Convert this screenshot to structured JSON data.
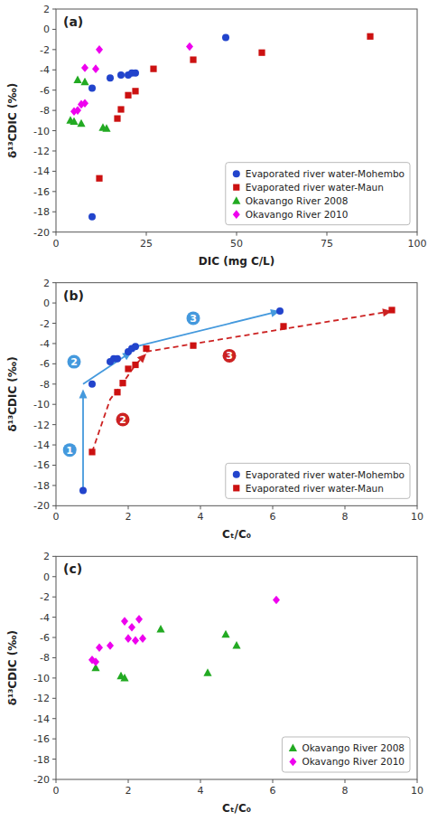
{
  "chart_data": [
    {
      "type": "scatter",
      "title": "(a)",
      "xlabel": "DIC (mg C/L)",
      "ylabel": "δ¹³CDIC (‰)",
      "xlim": [
        0,
        100
      ],
      "ylim": [
        -20,
        2
      ],
      "xticks": [
        0,
        25,
        50,
        75,
        100
      ],
      "yticks": [
        2,
        0,
        -2,
        -4,
        -6,
        -8,
        -10,
        -12,
        -14,
        -16,
        -18,
        -20
      ],
      "grid": false,
      "legend": "lower right",
      "series": [
        {
          "name": "Evaporated river water-Mohembo",
          "color": "#2244CC",
          "marker": "circle",
          "x": [
            10,
            10,
            15,
            18,
            20,
            21,
            22,
            47
          ],
          "values": [
            -18.5,
            -5.8,
            -4.8,
            -4.5,
            -4.5,
            -4.3,
            -4.3,
            -0.8
          ]
        },
        {
          "name": "Evaporated river water-Maun",
          "color": "#CC1111",
          "marker": "square",
          "x": [
            12,
            17,
            18,
            20,
            22,
            27,
            38,
            57,
            87
          ],
          "values": [
            -14.7,
            -8.8,
            -7.9,
            -6.5,
            -6.1,
            -3.9,
            -3.0,
            -2.3,
            -0.7
          ]
        },
        {
          "name": "Okavango River 2008",
          "color": "#22AA22",
          "marker": "triangle",
          "x": [
            4,
            5,
            6,
            7,
            8,
            13,
            14
          ],
          "values": [
            -9.0,
            -9.1,
            -5.0,
            -9.3,
            -5.2,
            -9.7,
            -9.8
          ]
        },
        {
          "name": "Okavango River 2010",
          "color": "#EE00EE",
          "marker": "diamond",
          "x": [
            5,
            6,
            7,
            8,
            8,
            11,
            12,
            37
          ],
          "values": [
            -8.1,
            -8.0,
            -7.4,
            -7.3,
            -3.8,
            -3.9,
            -2.0,
            -1.7
          ]
        }
      ]
    },
    {
      "type": "scatter",
      "title": "(b)",
      "xlabel": "Cₜ/C₀",
      "ylabel": "δ¹³CDIC (‰)",
      "xlim": [
        0,
        10
      ],
      "ylim": [
        -20,
        2
      ],
      "xticks": [
        0,
        2,
        4,
        6,
        8,
        10
      ],
      "yticks": [
        2,
        0,
        -2,
        -4,
        -6,
        -8,
        -10,
        -12,
        -14,
        -16,
        -18,
        -20
      ],
      "grid": false,
      "legend": "lower right",
      "series": [
        {
          "name": "Evaporated river water-Mohembo",
          "color": "#2244CC",
          "marker": "circle",
          "x": [
            0.75,
            1.0,
            1.5,
            1.6,
            1.7,
            2.0,
            2.1,
            2.2,
            6.2
          ],
          "values": [
            -18.5,
            -8.0,
            -5.8,
            -5.5,
            -5.5,
            -4.8,
            -4.5,
            -4.3,
            -0.8
          ]
        },
        {
          "name": "Evaporated river water-Maun",
          "color": "#CC1111",
          "marker": "square",
          "x": [
            1.0,
            1.7,
            1.85,
            2.0,
            2.2,
            2.5,
            3.8,
            6.3,
            9.3
          ],
          "values": [
            -14.7,
            -8.8,
            -7.9,
            -6.5,
            -6.1,
            -4.5,
            -4.2,
            -2.3,
            -0.7
          ]
        }
      ],
      "annotations": [
        {
          "type": "arrow",
          "color": "#4499DD",
          "line_style": "solid",
          "x": [
            0.75,
            0.75
          ],
          "y": [
            -18.5,
            -8.5
          ]
        },
        {
          "type": "arrow",
          "color": "#4499DD",
          "line_style": "solid",
          "x": [
            0.75,
            2.1
          ],
          "y": [
            -8.0,
            -4.8
          ]
        },
        {
          "type": "arrow",
          "color": "#4499DD",
          "line_style": "solid",
          "x": [
            2.2,
            6.2
          ],
          "y": [
            -4.3,
            -0.8
          ]
        },
        {
          "type": "arrow",
          "color": "#CC2222",
          "line_style": "dashed",
          "x": [
            1.0,
            1.5,
            1.85,
            2.2,
            2.5
          ],
          "y": [
            -14.7,
            -9.5,
            -7.9,
            -6.1,
            -5.0
          ]
        },
        {
          "type": "arrow",
          "color": "#CC2222",
          "line_style": "dashed",
          "x": [
            2.5,
            9.3
          ],
          "y": [
            -4.8,
            -0.8
          ]
        },
        {
          "type": "label",
          "text": "1",
          "color": "#4499DD",
          "x": 0.38,
          "y": -14.5
        },
        {
          "type": "label",
          "text": "2",
          "color": "#4499DD",
          "x": 0.5,
          "y": -5.8
        },
        {
          "type": "label",
          "text": "3",
          "color": "#4499DD",
          "x": 3.8,
          "y": -1.5
        },
        {
          "type": "label",
          "text": "2",
          "color": "#CC2222",
          "x": 1.85,
          "y": -11.5
        },
        {
          "type": "label",
          "text": "3",
          "color": "#CC2222",
          "x": 4.8,
          "y": -5.2
        }
      ]
    },
    {
      "type": "scatter",
      "title": "(c)",
      "xlabel": "Cₜ/C₀",
      "ylabel": "δ¹³CDIC (‰)",
      "xlim": [
        0,
        10
      ],
      "ylim": [
        -20,
        2
      ],
      "xticks": [
        0,
        2,
        4,
        6,
        8,
        10
      ],
      "yticks": [
        2,
        0,
        -2,
        -4,
        -6,
        -8,
        -10,
        -12,
        -14,
        -16,
        -18,
        -20
      ],
      "grid": false,
      "legend": "lower right",
      "series": [
        {
          "name": "Okavango River 2008",
          "color": "#22AA22",
          "marker": "triangle",
          "x": [
            1.1,
            1.8,
            1.9,
            2.9,
            4.2,
            4.7,
            5.0
          ],
          "values": [
            -9.0,
            -9.8,
            -10.0,
            -5.2,
            -9.5,
            -5.7,
            -6.8
          ]
        },
        {
          "name": "Okavango River 2010",
          "color": "#EE00EE",
          "marker": "diamond",
          "x": [
            1.0,
            1.1,
            1.2,
            1.5,
            1.9,
            2.0,
            2.1,
            2.2,
            2.3,
            2.4,
            6.1
          ],
          "values": [
            -8.2,
            -8.4,
            -7.0,
            -6.8,
            -4.4,
            -6.1,
            -5.0,
            -6.3,
            -4.2,
            -6.1,
            -2.3
          ]
        }
      ]
    }
  ]
}
